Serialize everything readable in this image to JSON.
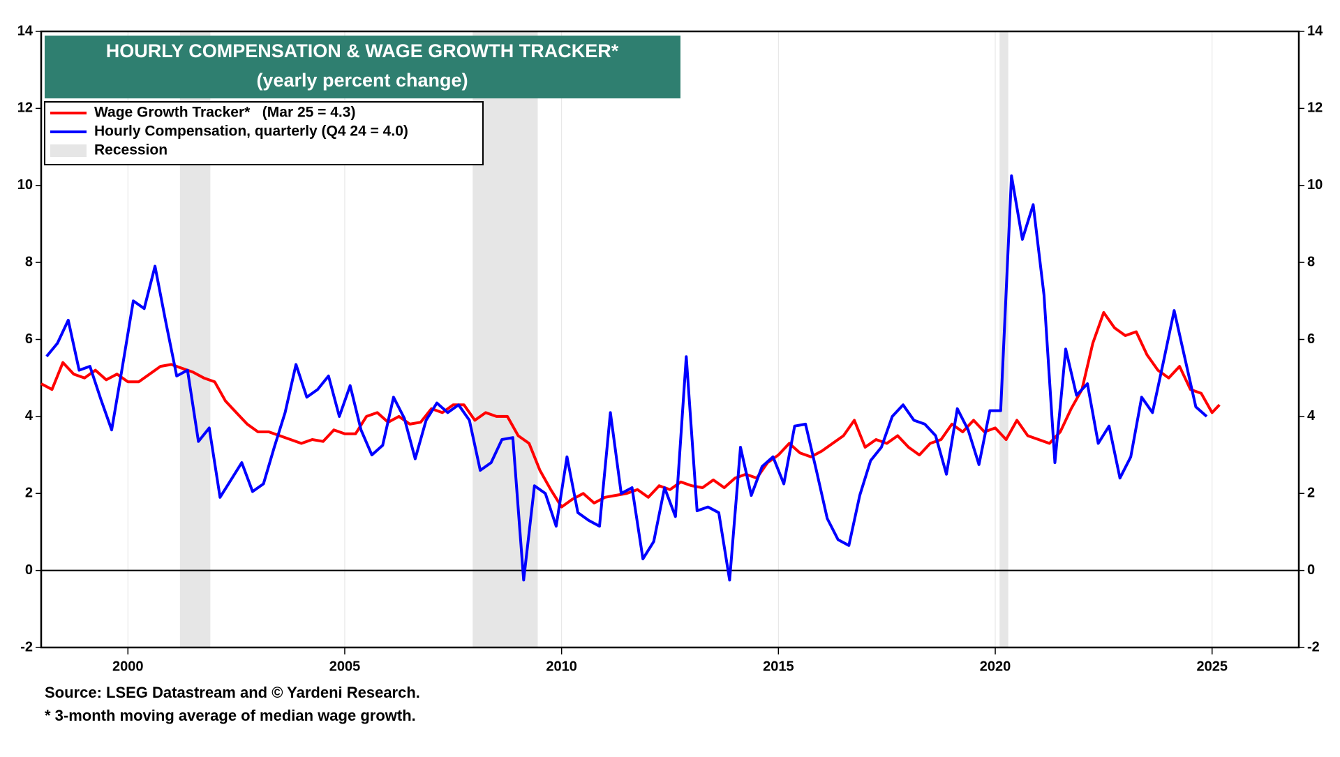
{
  "chart_data": {
    "type": "line",
    "title": "HOURLY COMPENSATION & WAGE GROWTH TRACKER*",
    "subtitle": "(yearly percent change)",
    "source": "Source: LSEG Datastream and © Yardeni Research.",
    "footnote": "* 3-month moving average of median wage growth.",
    "xlim": [
      1998,
      2027
    ],
    "xticks": [
      2000,
      2005,
      2010,
      2015,
      2020,
      2025
    ],
    "ylim": [
      -2,
      14
    ],
    "yticks": [
      -2,
      0,
      2,
      4,
      6,
      8,
      10,
      12,
      14
    ],
    "y2lim": [
      -2,
      14
    ],
    "y2ticks": [
      -2,
      0,
      2,
      4,
      6,
      8,
      10,
      12,
      14
    ],
    "grid": true,
    "zero_line": true,
    "legend": "upper left",
    "recession_label": "Recession",
    "recession_color": "#e6e6e6",
    "recessions": [
      [
        2001.2,
        2001.9
      ],
      [
        2007.95,
        2009.45
      ],
      [
        2020.1,
        2020.3
      ]
    ],
    "series": [
      {
        "name": "Wage Growth Tracker*   (Mar 25 = 4.3)",
        "color": "#ff0000",
        "x": [
          1998,
          1998.25,
          1998.5,
          1998.75,
          1999,
          1999.25,
          1999.5,
          1999.75,
          2000,
          2000.25,
          2000.5,
          2000.75,
          2001,
          2001.25,
          2001.5,
          2001.75,
          2002,
          2002.25,
          2002.5,
          2002.75,
          2003,
          2003.25,
          2003.5,
          2003.75,
          2004,
          2004.25,
          2004.5,
          2004.75,
          2005,
          2005.25,
          2005.5,
          2005.75,
          2006,
          2006.25,
          2006.5,
          2006.75,
          2007,
          2007.25,
          2007.5,
          2007.75,
          2008,
          2008.25,
          2008.5,
          2008.75,
          2009,
          2009.25,
          2009.5,
          2009.75,
          2010,
          2010.25,
          2010.5,
          2010.75,
          2011,
          2011.25,
          2011.5,
          2011.75,
          2012,
          2012.25,
          2012.5,
          2012.75,
          2013,
          2013.25,
          2013.5,
          2013.75,
          2014,
          2014.25,
          2014.5,
          2014.75,
          2015,
          2015.25,
          2015.5,
          2015.75,
          2016,
          2016.25,
          2016.5,
          2016.75,
          2017,
          2017.25,
          2017.5,
          2017.75,
          2018,
          2018.25,
          2018.5,
          2018.75,
          2019,
          2019.25,
          2019.5,
          2019.75,
          2020,
          2020.25,
          2020.5,
          2020.75,
          2021,
          2021.25,
          2021.5,
          2021.75,
          2022,
          2022.25,
          2022.5,
          2022.75,
          2023,
          2023.25,
          2023.5,
          2023.75,
          2024,
          2024.25,
          2024.5,
          2024.75,
          2025,
          2025.17
        ],
        "values": [
          4.85,
          4.7,
          5.4,
          5.1,
          5.0,
          5.2,
          4.95,
          5.1,
          4.9,
          4.9,
          5.1,
          5.3,
          5.35,
          5.25,
          5.15,
          5.0,
          4.9,
          4.4,
          4.1,
          3.8,
          3.6,
          3.6,
          3.5,
          3.4,
          3.3,
          3.4,
          3.35,
          3.65,
          3.55,
          3.55,
          4.0,
          4.1,
          3.85,
          4.0,
          3.8,
          3.85,
          4.2,
          4.1,
          4.3,
          4.3,
          3.9,
          4.1,
          4.0,
          4.0,
          3.5,
          3.3,
          2.6,
          2.1,
          1.65,
          1.85,
          2.0,
          1.75,
          1.9,
          1.95,
          2.0,
          2.1,
          1.9,
          2.2,
          2.1,
          2.3,
          2.2,
          2.15,
          2.35,
          2.15,
          2.4,
          2.5,
          2.4,
          2.8,
          3.0,
          3.3,
          3.05,
          2.95,
          3.1,
          3.3,
          3.5,
          3.9,
          3.2,
          3.4,
          3.3,
          3.5,
          3.2,
          3.0,
          3.3,
          3.4,
          3.8,
          3.6,
          3.9,
          3.6,
          3.7,
          3.4,
          3.9,
          3.5,
          3.4,
          3.3,
          3.6,
          4.2,
          4.7,
          5.9,
          6.7,
          6.3,
          6.1,
          6.2,
          5.6,
          5.2,
          5.0,
          5.3,
          4.7,
          4.6,
          4.1,
          4.3
        ]
      },
      {
        "name": "Hourly Compensation, quarterly (Q4 24 = 4.0)",
        "color": "#0000ff",
        "x": [
          1998.125,
          1998.375,
          1998.625,
          1998.875,
          1999.125,
          1999.375,
          1999.625,
          1999.875,
          2000.125,
          2000.375,
          2000.625,
          2000.875,
          2001.125,
          2001.375,
          2001.625,
          2001.875,
          2002.125,
          2002.375,
          2002.625,
          2002.875,
          2003.125,
          2003.375,
          2003.625,
          2003.875,
          2004.125,
          2004.375,
          2004.625,
          2004.875,
          2005.125,
          2005.375,
          2005.625,
          2005.875,
          2006.125,
          2006.375,
          2006.625,
          2006.875,
          2007.125,
          2007.375,
          2007.625,
          2007.875,
          2008.125,
          2008.375,
          2008.625,
          2008.875,
          2009.125,
          2009.375,
          2009.625,
          2009.875,
          2010.125,
          2010.375,
          2010.625,
          2010.875,
          2011.125,
          2011.375,
          2011.625,
          2011.875,
          2012.125,
          2012.375,
          2012.625,
          2012.875,
          2013.125,
          2013.375,
          2013.625,
          2013.875,
          2014.125,
          2014.375,
          2014.625,
          2014.875,
          2015.125,
          2015.375,
          2015.625,
          2015.875,
          2016.125,
          2016.375,
          2016.625,
          2016.875,
          2017.125,
          2017.375,
          2017.625,
          2017.875,
          2018.125,
          2018.375,
          2018.625,
          2018.875,
          2019.125,
          2019.375,
          2019.625,
          2019.875,
          2020.125,
          2020.375,
          2020.625,
          2020.875,
          2021.125,
          2021.375,
          2021.625,
          2021.875,
          2022.125,
          2022.375,
          2022.625,
          2022.875,
          2023.125,
          2023.375,
          2023.625,
          2023.875,
          2024.125,
          2024.375,
          2024.625,
          2024.875
        ],
        "values": [
          5.56,
          5.9,
          6.5,
          5.2,
          5.3,
          4.45,
          3.65,
          5.3,
          7.0,
          6.8,
          7.9,
          6.45,
          5.05,
          5.2,
          3.35,
          3.7,
          1.9,
          2.35,
          2.8,
          2.05,
          2.25,
          3.2,
          4.1,
          5.35,
          4.5,
          4.7,
          5.05,
          4.0,
          4.8,
          3.65,
          3.0,
          3.25,
          4.5,
          3.95,
          2.9,
          3.9,
          4.35,
          4.1,
          4.3,
          3.9,
          2.6,
          2.8,
          3.4,
          3.45,
          -0.25,
          2.2,
          2.0,
          1.15,
          2.95,
          1.5,
          1.3,
          1.15,
          4.1,
          2.0,
          2.15,
          0.3,
          0.75,
          2.15,
          1.4,
          5.55,
          1.55,
          1.65,
          1.5,
          -0.25,
          3.2,
          1.95,
          2.7,
          2.95,
          2.25,
          3.75,
          3.8,
          2.6,
          1.35,
          0.8,
          0.65,
          1.95,
          2.85,
          3.2,
          4.0,
          4.3,
          3.9,
          3.8,
          3.5,
          2.5,
          4.2,
          3.65,
          2.75,
          4.15,
          4.15,
          10.25,
          8.6,
          9.5,
          7.15,
          2.8,
          5.75,
          4.55,
          4.85,
          3.3,
          3.75,
          2.4,
          2.95,
          4.5,
          4.1,
          5.4,
          6.75,
          5.5,
          4.25,
          4.0
        ]
      }
    ]
  }
}
